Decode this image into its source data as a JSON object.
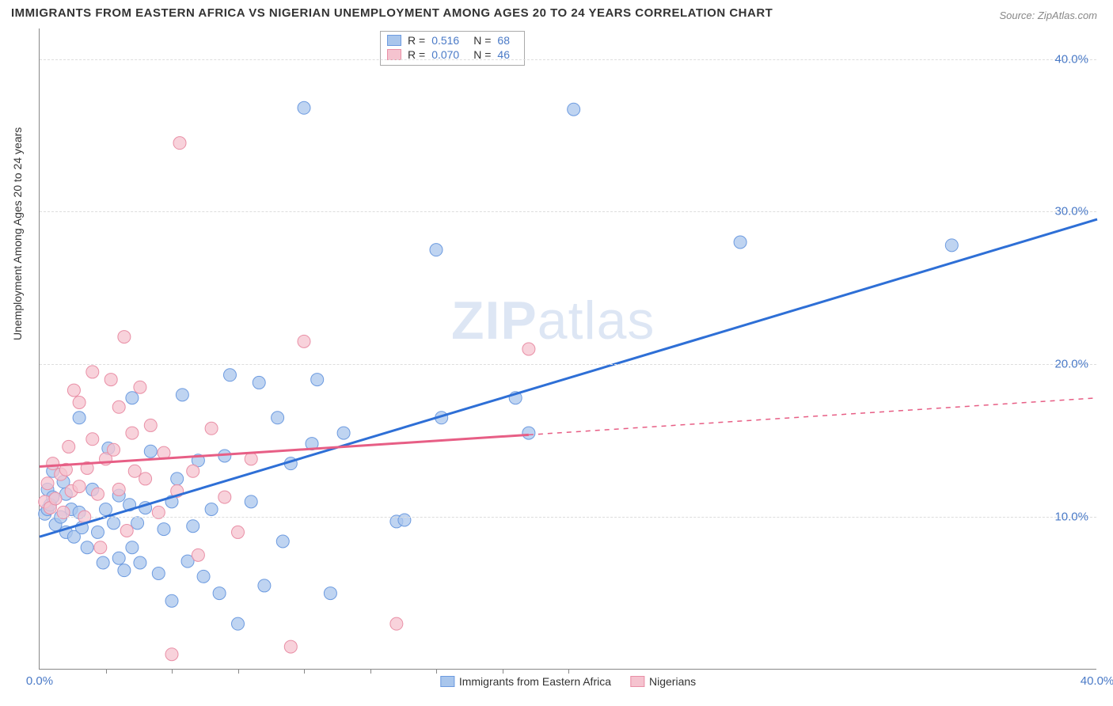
{
  "title": "IMMIGRANTS FROM EASTERN AFRICA VS NIGERIAN UNEMPLOYMENT AMONG AGES 20 TO 24 YEARS CORRELATION CHART",
  "source": "Source: ZipAtlas.com",
  "yaxis_label": "Unemployment Among Ages 20 to 24 years",
  "watermark": "ZIPatlas",
  "chart": {
    "type": "scatter-with-regression",
    "background": "#ffffff",
    "grid_color": "#dddddd",
    "axis_color": "#888888",
    "text_color": "#333333",
    "value_color": "#4a7ac7",
    "xlim": [
      0,
      40
    ],
    "ylim": [
      0,
      42
    ],
    "y_ticks": [
      {
        "v": 10,
        "label": "10.0%"
      },
      {
        "v": 20,
        "label": "20.0%"
      },
      {
        "v": 30,
        "label": "30.0%"
      },
      {
        "v": 40,
        "label": "40.0%"
      }
    ],
    "x_tick_label_left": "0.0%",
    "x_tick_label_right": "40.0%",
    "x_minor_ticks": [
      2.5,
      5,
      7.5,
      10,
      12.5,
      15,
      17.5,
      20
    ],
    "series": [
      {
        "name": "Immigrants from Eastern Africa",
        "fill": "#a9c6ec",
        "stroke": "#6d9be0",
        "line_color": "#2e6fd6",
        "R": "0.516",
        "N": "68",
        "regression": {
          "x1": 0,
          "y1": 8.7,
          "x2": 40,
          "y2": 29.5,
          "solid_until_x": 40
        },
        "points": [
          [
            0.2,
            10.2
          ],
          [
            0.3,
            11.8
          ],
          [
            0.3,
            10.5
          ],
          [
            0.4,
            10.8
          ],
          [
            0.5,
            11.3
          ],
          [
            0.5,
            13.0
          ],
          [
            0.6,
            9.5
          ],
          [
            0.8,
            10.0
          ],
          [
            0.9,
            12.3
          ],
          [
            1.0,
            9.0
          ],
          [
            1.0,
            11.5
          ],
          [
            1.2,
            10.5
          ],
          [
            1.3,
            8.7
          ],
          [
            1.5,
            10.3
          ],
          [
            1.5,
            16.5
          ],
          [
            1.6,
            9.3
          ],
          [
            1.8,
            8.0
          ],
          [
            2.0,
            11.8
          ],
          [
            2.2,
            9.0
          ],
          [
            2.4,
            7.0
          ],
          [
            2.5,
            10.5
          ],
          [
            2.6,
            14.5
          ],
          [
            2.8,
            9.6
          ],
          [
            3.0,
            7.3
          ],
          [
            3.0,
            11.4
          ],
          [
            3.2,
            6.5
          ],
          [
            3.4,
            10.8
          ],
          [
            3.5,
            8.0
          ],
          [
            3.5,
            17.8
          ],
          [
            3.7,
            9.6
          ],
          [
            3.8,
            7.0
          ],
          [
            4.0,
            10.6
          ],
          [
            4.2,
            14.3
          ],
          [
            4.5,
            6.3
          ],
          [
            4.7,
            9.2
          ],
          [
            5.0,
            11.0
          ],
          [
            5.0,
            4.5
          ],
          [
            5.2,
            12.5
          ],
          [
            5.4,
            18.0
          ],
          [
            5.6,
            7.1
          ],
          [
            5.8,
            9.4
          ],
          [
            6.0,
            13.7
          ],
          [
            6.2,
            6.1
          ],
          [
            6.5,
            10.5
          ],
          [
            6.8,
            5.0
          ],
          [
            7.0,
            14.0
          ],
          [
            7.2,
            19.3
          ],
          [
            7.5,
            3.0
          ],
          [
            8.0,
            11.0
          ],
          [
            8.3,
            18.8
          ],
          [
            8.5,
            5.5
          ],
          [
            9.0,
            16.5
          ],
          [
            9.2,
            8.4
          ],
          [
            9.5,
            13.5
          ],
          [
            10.0,
            36.8
          ],
          [
            10.3,
            14.8
          ],
          [
            10.5,
            19.0
          ],
          [
            11.0,
            5.0
          ],
          [
            11.5,
            15.5
          ],
          [
            13.5,
            9.7
          ],
          [
            13.8,
            9.8
          ],
          [
            15.0,
            27.5
          ],
          [
            15.2,
            16.5
          ],
          [
            18.0,
            17.8
          ],
          [
            18.5,
            15.5
          ],
          [
            20.2,
            36.7
          ],
          [
            26.5,
            28.0
          ],
          [
            34.5,
            27.8
          ]
        ]
      },
      {
        "name": "Nigerians",
        "fill": "#f5c3cf",
        "stroke": "#e98fa6",
        "line_color": "#e75e85",
        "R": "0.070",
        "N": "46",
        "regression": {
          "x1": 0,
          "y1": 13.3,
          "x2": 40,
          "y2": 17.8,
          "solid_until_x": 18.5
        },
        "points": [
          [
            0.2,
            11.0
          ],
          [
            0.3,
            12.2
          ],
          [
            0.4,
            10.6
          ],
          [
            0.5,
            13.5
          ],
          [
            0.6,
            11.2
          ],
          [
            0.8,
            12.8
          ],
          [
            0.9,
            10.3
          ],
          [
            1.0,
            13.1
          ],
          [
            1.1,
            14.6
          ],
          [
            1.2,
            11.7
          ],
          [
            1.3,
            18.3
          ],
          [
            1.5,
            12.0
          ],
          [
            1.5,
            17.5
          ],
          [
            1.7,
            10.0
          ],
          [
            1.8,
            13.2
          ],
          [
            2.0,
            15.1
          ],
          [
            2.0,
            19.5
          ],
          [
            2.2,
            11.5
          ],
          [
            2.3,
            8.0
          ],
          [
            2.5,
            13.8
          ],
          [
            2.7,
            19.0
          ],
          [
            2.8,
            14.4
          ],
          [
            3.0,
            17.2
          ],
          [
            3.0,
            11.8
          ],
          [
            3.2,
            21.8
          ],
          [
            3.3,
            9.1
          ],
          [
            3.5,
            15.5
          ],
          [
            3.6,
            13.0
          ],
          [
            3.8,
            18.5
          ],
          [
            4.0,
            12.5
          ],
          [
            4.2,
            16.0
          ],
          [
            4.5,
            10.3
          ],
          [
            4.7,
            14.2
          ],
          [
            5.0,
            1.0
          ],
          [
            5.2,
            11.7
          ],
          [
            5.3,
            34.5
          ],
          [
            5.8,
            13.0
          ],
          [
            6.0,
            7.5
          ],
          [
            6.5,
            15.8
          ],
          [
            7.0,
            11.3
          ],
          [
            7.5,
            9.0
          ],
          [
            8.0,
            13.8
          ],
          [
            9.5,
            1.5
          ],
          [
            10.0,
            21.5
          ],
          [
            13.5,
            3.0
          ],
          [
            18.5,
            21.0
          ]
        ]
      }
    ],
    "marker_radius": 8,
    "marker_opacity": 0.75,
    "line_width": 3,
    "dash_pattern": "6,6"
  },
  "bottom_legend": [
    {
      "label": "Immigrants from Eastern Africa",
      "fill": "#a9c6ec",
      "stroke": "#6d9be0"
    },
    {
      "label": "Nigerians",
      "fill": "#f5c3cf",
      "stroke": "#e98fa6"
    }
  ]
}
